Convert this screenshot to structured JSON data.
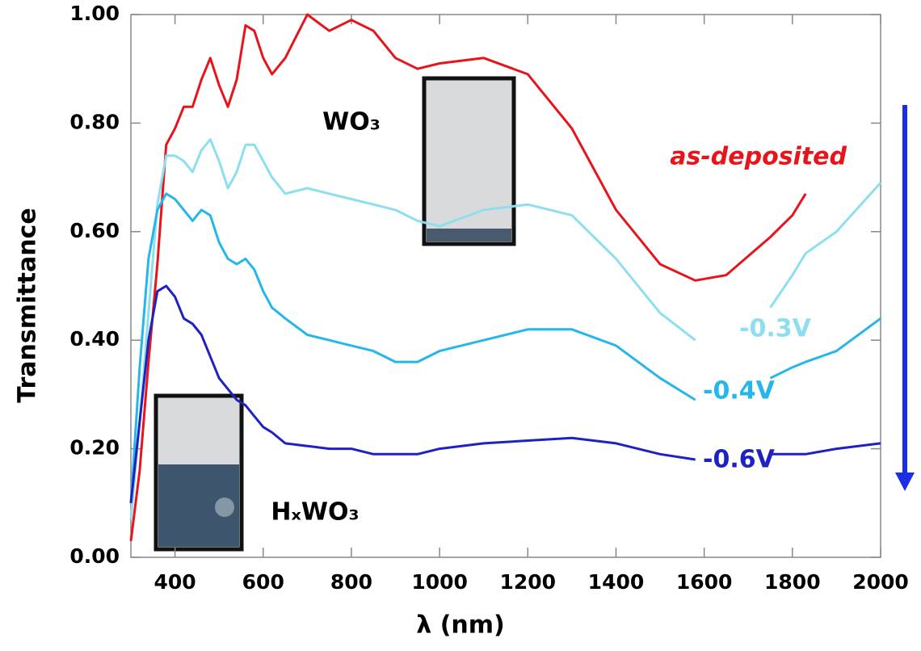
{
  "chart_data": {
    "type": "line",
    "x_label": "λ (nm)",
    "y_label": "Transmittance",
    "xlim": [
      300,
      2000
    ],
    "ylim": [
      0,
      1
    ],
    "xticks": [
      400,
      600,
      800,
      1000,
      1200,
      1400,
      1600,
      1800,
      2000
    ],
    "yticks": [
      {
        "value": 0,
        "label": "0.00"
      },
      {
        "value": 0.2,
        "label": "0.20"
      },
      {
        "value": 0.4,
        "label": "0.40"
      },
      {
        "value": 0.6,
        "label": "0.60"
      },
      {
        "value": 0.8,
        "label": "0.80"
      },
      {
        "value": 1,
        "label": "1.00"
      }
    ],
    "grid": false,
    "x": [
      300,
      320,
      340,
      360,
      380,
      400,
      420,
      440,
      460,
      480,
      500,
      520,
      540,
      560,
      580,
      600,
      620,
      650,
      700,
      750,
      800,
      850,
      900,
      950,
      1000,
      1100,
      1200,
      1300,
      1400,
      1500,
      1580,
      1650,
      1750,
      1800,
      1830,
      1900,
      2000
    ],
    "series": [
      {
        "name": "as-deposited",
        "color": "#e8141c",
        "values": [
          0.03,
          0.16,
          0.36,
          0.54,
          0.76,
          0.79,
          0.83,
          0.83,
          0.88,
          0.92,
          0.87,
          0.83,
          0.88,
          0.98,
          0.97,
          0.92,
          0.89,
          0.92,
          1.0,
          0.97,
          0.99,
          0.97,
          0.92,
          0.9,
          0.91,
          0.92,
          0.89,
          0.79,
          0.64,
          0.54,
          0.51,
          0.52,
          0.59,
          0.63,
          0.67,
          null,
          null
        ]
      },
      {
        "name": "-0.3V",
        "color": "#8ddff0",
        "values": [
          0.07,
          0.25,
          0.45,
          0.65,
          0.74,
          0.74,
          0.73,
          0.71,
          0.75,
          0.77,
          0.73,
          0.68,
          0.71,
          0.76,
          0.76,
          0.73,
          0.7,
          0.67,
          0.68,
          0.67,
          0.66,
          0.65,
          0.64,
          0.62,
          0.61,
          0.64,
          0.65,
          0.63,
          0.55,
          0.45,
          0.4,
          null,
          0.46,
          0.52,
          0.56,
          0.6,
          0.69
        ]
      },
      {
        "name": "-0.4V",
        "color": "#26b6ea",
        "values": [
          0.1,
          0.35,
          0.55,
          0.64,
          0.67,
          0.66,
          0.64,
          0.62,
          0.64,
          0.63,
          0.58,
          0.55,
          0.54,
          0.55,
          0.53,
          0.49,
          0.46,
          0.44,
          0.41,
          0.4,
          0.39,
          0.38,
          0.36,
          0.36,
          0.38,
          0.4,
          0.42,
          0.42,
          0.39,
          0.33,
          0.29,
          null,
          0.33,
          0.35,
          0.36,
          0.38,
          0.44
        ]
      },
      {
        "name": "-0.6V",
        "color": "#1e22c0",
        "values": [
          0.1,
          0.25,
          0.4,
          0.49,
          0.5,
          0.48,
          0.44,
          0.43,
          0.41,
          0.37,
          0.33,
          0.31,
          0.29,
          0.28,
          0.26,
          0.24,
          0.23,
          0.21,
          0.205,
          0.2,
          0.2,
          0.19,
          0.19,
          0.19,
          0.2,
          0.21,
          0.215,
          0.22,
          0.21,
          0.19,
          0.18,
          null,
          0.19,
          0.19,
          0.19,
          0.2,
          0.21
        ]
      }
    ],
    "annotations": [
      "WO₃",
      "HₓWO₃"
    ]
  }
}
